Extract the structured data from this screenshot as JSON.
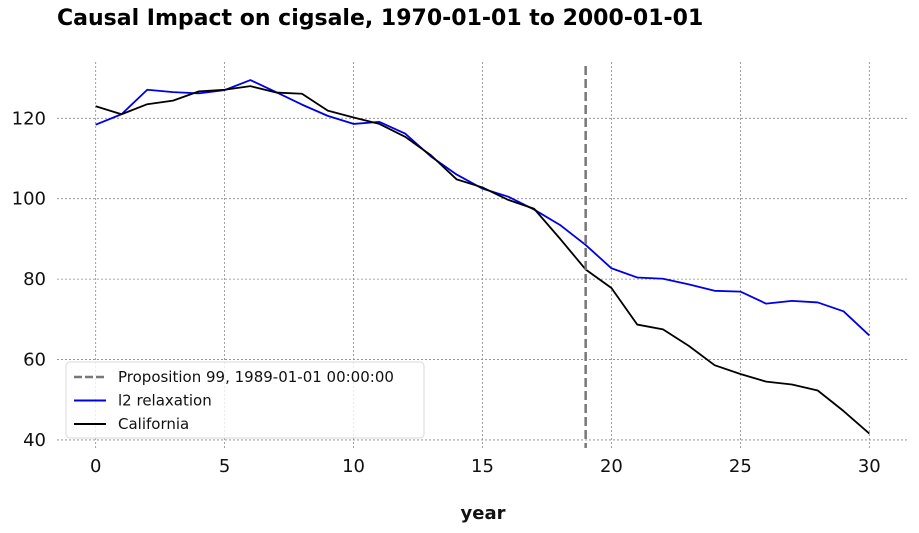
{
  "chart_data": {
    "type": "line",
    "title": "Causal Impact on cigsale, 1970-01-01 to 2000-01-01",
    "xlabel": "year",
    "ylabel": "",
    "xlim": [
      -1.5,
      31.5
    ],
    "ylim": [
      38,
      134
    ],
    "xticks": [
      0,
      5,
      10,
      15,
      20,
      25,
      30
    ],
    "yticks": [
      40,
      60,
      80,
      100,
      120
    ],
    "grid": true,
    "legend_position": "bottom-left",
    "x": [
      0,
      1,
      2,
      3,
      4,
      5,
      6,
      7,
      8,
      9,
      10,
      11,
      12,
      13,
      14,
      15,
      16,
      17,
      18,
      19,
      20,
      21,
      22,
      23,
      24,
      25,
      26,
      27,
      28,
      29,
      30
    ],
    "series": [
      {
        "name": "l2 relaxation",
        "color": "#0000e6",
        "style": "solid",
        "values": [
          118.4,
          121.0,
          127.1,
          126.5,
          126.2,
          127.0,
          129.5,
          126.5,
          123.4,
          120.6,
          118.6,
          119.1,
          116.2,
          110.5,
          106.0,
          102.5,
          100.5,
          97.3,
          93.5,
          88.5,
          82.7,
          80.4,
          80.1,
          78.7,
          77.1,
          76.9,
          73.9,
          74.6,
          74.2,
          72.0,
          66.0
        ]
      },
      {
        "name": "California",
        "color": "#000000",
        "style": "solid",
        "values": [
          123.0,
          121.0,
          123.5,
          124.4,
          126.7,
          127.1,
          128.0,
          126.4,
          126.1,
          121.9,
          120.2,
          118.6,
          115.4,
          110.8,
          104.8,
          102.8,
          99.7,
          97.5,
          90.1,
          82.4,
          77.8,
          68.7,
          67.5,
          63.4,
          58.6,
          56.4,
          54.5,
          53.8,
          52.3,
          47.2,
          41.6
        ]
      }
    ],
    "annotations": [
      {
        "name": "Proposition 99, 1989-01-01 00:00:00",
        "type": "vline",
        "x": 19,
        "color": "#777777",
        "style": "dashed"
      }
    ]
  }
}
